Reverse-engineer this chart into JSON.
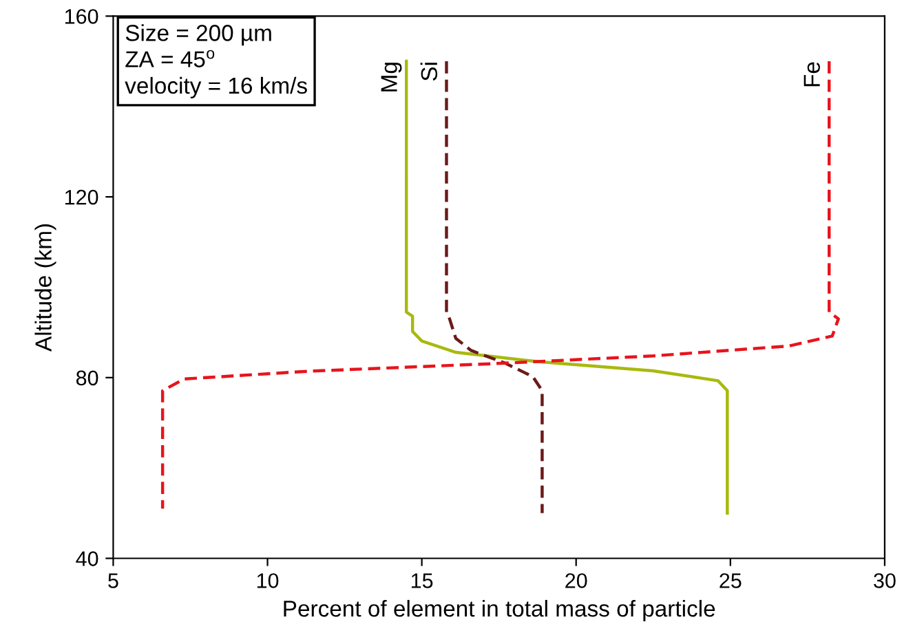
{
  "chart_data": {
    "type": "line",
    "xlabel": "Percent of element in total mass of particle",
    "ylabel": "Altitude (km)",
    "xlim": [
      5,
      30
    ],
    "xticks": [
      5,
      10,
      15,
      20,
      25,
      30
    ],
    "ylim": [
      40,
      160
    ],
    "yticks": [
      40,
      80,
      120,
      160
    ],
    "grid": false,
    "legend": false,
    "marker": "none",
    "annotations": [
      "Size = 200 µm\nZA = 45$^{o}$\nvelocity = 16 km/s"
    ],
    "series": [
      {
        "name": "Mg",
        "color": "#a8b90e",
        "line_style": "solid",
        "x": [
          14.5,
          14.5,
          14.7,
          14.7,
          15.0,
          16.1,
          18.8,
          22.5,
          24.6,
          24.9,
          24.9
        ],
        "values": [
          150,
          94.5,
          93.6,
          90.2,
          88.1,
          85.6,
          83.5,
          81.5,
          79.3,
          77.1,
          50
        ]
      },
      {
        "name": "Si",
        "color": "#6b1a1a",
        "line_style": "dashed",
        "x": [
          15.8,
          15.8,
          15.9,
          16.1,
          16.6,
          17.7,
          18.6,
          18.9,
          18.9
        ],
        "values": [
          150,
          94.5,
          93,
          88.7,
          86,
          83.2,
          80.2,
          77.1,
          50
        ]
      },
      {
        "name": "Fe",
        "color": "#e8141c",
        "line_style": "dashed",
        "x": [
          28.2,
          28.2,
          28.5,
          28.3,
          26.9,
          22.5,
          17.7,
          11.3,
          7.3,
          6.6,
          6.6
        ],
        "values": [
          150,
          94.5,
          93,
          89.2,
          87,
          84.8,
          83.2,
          81.4,
          79.7,
          77.1,
          51
        ]
      }
    ]
  }
}
